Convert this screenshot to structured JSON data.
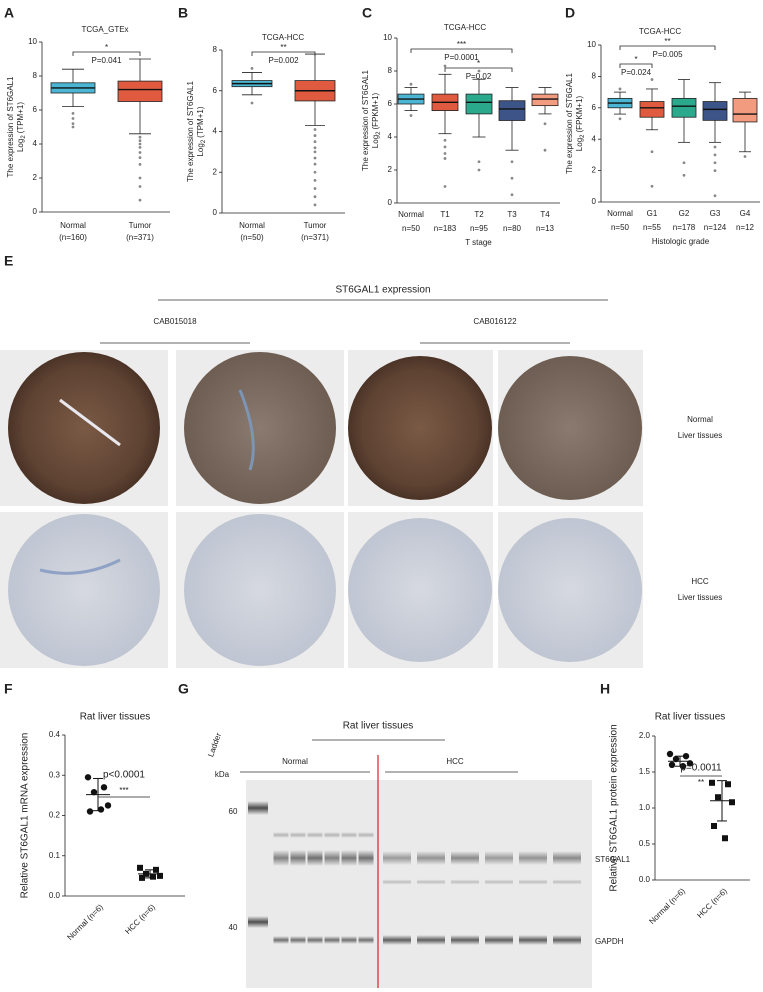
{
  "panel_letters": [
    "A",
    "B",
    "C",
    "D",
    "E",
    "F",
    "G",
    "H"
  ],
  "chart_data": [
    {
      "type": "box",
      "title": "TCGA_GTEx",
      "ylabel": "The expression  of ST6GAL1",
      "ylabel_log": "Log",
      "ylabel_sub": "2",
      "ylabel_unit": "(TPM+1)",
      "categories": [
        "Normal",
        "Tumor"
      ],
      "n_labels": [
        "(n=160)",
        "(n=371)"
      ],
      "colors": [
        "#4bb6d3",
        "#e05a3f"
      ],
      "ylim": [
        0,
        10
      ],
      "yticks": [
        0,
        2,
        4,
        6,
        8,
        10
      ],
      "boxes": [
        {
          "low": 6.2,
          "q1": 7.0,
          "median": 7.3,
          "q3": 7.6,
          "high": 8.4,
          "outliers": [
            5.8,
            5.5,
            5.2,
            5.0
          ]
        },
        {
          "low": 4.6,
          "q1": 6.5,
          "median": 7.2,
          "q3": 7.7,
          "high": 9.0,
          "outliers": [
            4.4,
            4.2,
            4.0,
            3.8,
            3.5,
            3.2,
            2.8,
            2.0,
            1.5,
            0.7
          ]
        }
      ],
      "annotations": [
        {
          "stars": "*",
          "p": "P=0.041"
        }
      ]
    },
    {
      "type": "box",
      "title": "TCGA-HCC",
      "ylabel": "The expression  of ST6GAL1",
      "ylabel_log": "Log",
      "ylabel_sub": "2",
      "ylabel_unit": "(TPM+1)",
      "categories": [
        "Normal",
        "Tumor"
      ],
      "n_labels": [
        "(n=50)",
        "(n=371)"
      ],
      "colors": [
        "#4bb6d3",
        "#e05a3f"
      ],
      "ylim": [
        0,
        8
      ],
      "yticks": [
        0,
        2,
        4,
        6,
        8
      ],
      "boxes": [
        {
          "low": 5.8,
          "q1": 6.2,
          "median": 6.35,
          "q3": 6.5,
          "high": 6.9,
          "outliers": [
            7.1,
            5.4
          ]
        },
        {
          "low": 4.3,
          "q1": 5.5,
          "median": 6.0,
          "q3": 6.5,
          "high": 7.8,
          "outliers": [
            4.1,
            3.8,
            3.5,
            3.2,
            3.0,
            2.7,
            2.4,
            2.0,
            1.6,
            1.2,
            0.8,
            0.4
          ]
        }
      ],
      "annotations": [
        {
          "stars": "**",
          "p": "P=0.002"
        }
      ]
    },
    {
      "type": "box",
      "title": "TCGA-HCC",
      "ylabel": "The expression  of ST6GAL1",
      "ylabel_log": "Log",
      "ylabel_sub": "2",
      "ylabel_unit": "(FPKM+1)",
      "categories": [
        "Normal",
        "T1",
        "T2",
        "T3",
        "T4"
      ],
      "n_labels": [
        "n=50",
        "n=183",
        "n=95",
        "n=80",
        "n=13"
      ],
      "xlabel": "T stage",
      "colors": [
        "#4bb6d3",
        "#e05a3f",
        "#2aa98c",
        "#3c5488",
        "#f39b7f"
      ],
      "ylim": [
        0,
        10
      ],
      "yticks": [
        0,
        2,
        4,
        6,
        8,
        10
      ],
      "boxes": [
        {
          "low": 5.6,
          "q1": 6.0,
          "median": 6.3,
          "q3": 6.6,
          "high": 7.0,
          "outliers": [
            7.2,
            5.3
          ]
        },
        {
          "low": 4.2,
          "q1": 5.6,
          "median": 6.1,
          "q3": 6.6,
          "high": 7.8,
          "outliers": [
            8.3,
            3.8,
            3.4,
            3.0,
            2.7,
            1.0
          ]
        },
        {
          "low": 4.0,
          "q1": 5.4,
          "median": 6.1,
          "q3": 6.6,
          "high": 7.5,
          "outliers": [
            8.0,
            2.5,
            2.0
          ]
        },
        {
          "low": 3.2,
          "q1": 5.0,
          "median": 5.7,
          "q3": 6.2,
          "high": 7.0,
          "outliers": [
            2.5,
            1.5,
            0.5
          ]
        },
        {
          "low": 5.4,
          "q1": 5.9,
          "median": 6.3,
          "q3": 6.6,
          "high": 7.0,
          "outliers": [
            4.8,
            3.2
          ]
        }
      ],
      "annotations": [
        {
          "stars": "***",
          "p": "P=0.0001"
        },
        {
          "stars": "*",
          "p": "P=0.02"
        }
      ]
    },
    {
      "type": "box",
      "title": "TCGA-HCC",
      "ylabel": "The expression  of ST6GAL1",
      "ylabel_log": "Log",
      "ylabel_sub": "2",
      "ylabel_unit": "(FPKM+1)",
      "categories": [
        "Normal",
        "G1",
        "G2",
        "G3",
        "G4"
      ],
      "n_labels": [
        "n=50",
        "n=55",
        "n=178",
        "n=124",
        "n=12"
      ],
      "xlabel": "Histologic grade",
      "colors": [
        "#4bb6d3",
        "#e05a3f",
        "#2aa98c",
        "#3c5488",
        "#f39b7f"
      ],
      "ylim": [
        0,
        10
      ],
      "yticks": [
        0,
        2,
        4,
        6,
        8,
        10
      ],
      "boxes": [
        {
          "low": 5.6,
          "q1": 6.0,
          "median": 6.3,
          "q3": 6.6,
          "high": 7.0,
          "outliers": [
            7.2,
            5.3
          ]
        },
        {
          "low": 4.6,
          "q1": 5.4,
          "median": 6.0,
          "q3": 6.4,
          "high": 7.2,
          "outliers": [
            7.8,
            3.2,
            1.0
          ]
        },
        {
          "low": 3.8,
          "q1": 5.4,
          "median": 6.1,
          "q3": 6.6,
          "high": 7.8,
          "outliers": [
            2.5,
            1.7
          ]
        },
        {
          "low": 3.8,
          "q1": 5.2,
          "median": 5.9,
          "q3": 6.4,
          "high": 7.6,
          "outliers": [
            3.5,
            3.0,
            2.5,
            2.0,
            0.4
          ]
        },
        {
          "low": 3.2,
          "q1": 5.1,
          "median": 5.6,
          "q3": 6.6,
          "high": 7.0,
          "outliers": [
            2.9
          ]
        }
      ],
      "annotations": [
        {
          "stars": "**",
          "p": "P=0.005"
        },
        {
          "stars": "*",
          "p": "P=0.024"
        }
      ]
    },
    {
      "type": "dot",
      "title": "Rat liver tissues",
      "ylabel": "Relative ST6GAL1 mRNA expression",
      "categories": [
        "Normal (n=6)",
        "HCC (n=6)"
      ],
      "ylim": [
        0,
        0.4
      ],
      "yticks": [
        {
          "value": 0,
          "label": "0.0"
        },
        0.1,
        0.2,
        0.3,
        0.4
      ],
      "groups": [
        {
          "marker": "circle",
          "values": [
            0.295,
            0.27,
            0.258,
            0.225,
            0.21,
            0.215
          ],
          "mean": 0.252,
          "sd": 0.04
        },
        {
          "marker": "square",
          "values": [
            0.07,
            0.065,
            0.055,
            0.05,
            0.045,
            0.048
          ],
          "mean": 0.055,
          "sd": 0.01
        }
      ],
      "annotations": [
        {
          "stars": "***",
          "p": "p<0.0001"
        }
      ]
    },
    {
      "type": "dot",
      "title": "Rat liver tissues",
      "ylabel": "Relative ST6GAL1 protein expression",
      "categories": [
        "Normal (n=6)",
        "HCC (n=6)"
      ],
      "ylim": [
        0,
        2
      ],
      "yticks": [
        {
          "value": 0,
          "label": "0.0"
        },
        0.5,
        {
          "value": 1,
          "label": "1.0"
        },
        1.5,
        {
          "value": 2,
          "label": "2.0"
        }
      ],
      "groups": [
        {
          "marker": "circle",
          "values": [
            1.75,
            1.72,
            1.68,
            1.62,
            1.6,
            1.58
          ],
          "mean": 1.65,
          "sd": 0.07
        },
        {
          "marker": "square",
          "values": [
            1.35,
            1.33,
            1.15,
            1.08,
            0.75,
            0.58
          ],
          "mean": 1.1,
          "sd": 0.28
        }
      ],
      "annotations": [
        {
          "stars": "**",
          "p": "p=0.0011"
        }
      ]
    }
  ],
  "tissue_panel": {
    "title": "ST6GAL1 expression",
    "antibodies": [
      "CAB015018",
      "CAB016122"
    ],
    "rows": [
      {
        "label": "Normal",
        "sub": "Liver tissues"
      },
      {
        "label": "HCC",
        "sub": "Liver tissues"
      }
    ]
  },
  "blot_panel": {
    "title": "Rat liver tissues",
    "ladder": "Ladder",
    "groups": [
      "Normal",
      "HCC"
    ],
    "unit": "kDa",
    "markers": [
      60,
      40
    ],
    "bands": [
      "ST6GAL1",
      "GAPDH"
    ]
  }
}
